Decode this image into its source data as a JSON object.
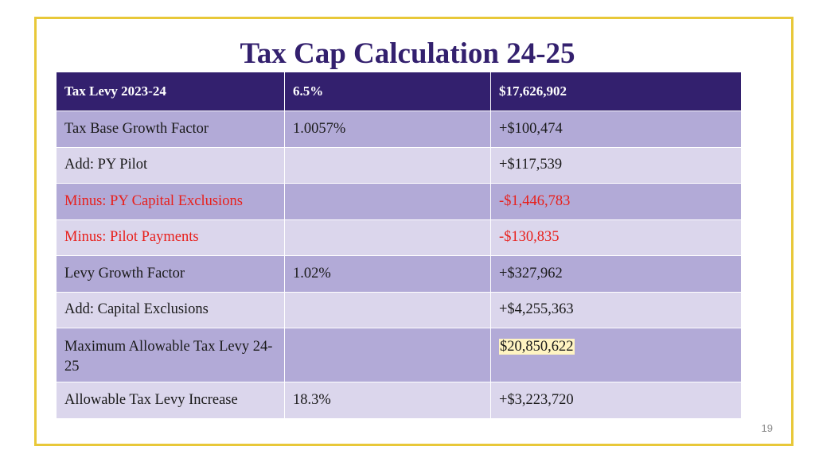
{
  "title": "Tax Cap Calculation 24-25",
  "header": {
    "label": "Tax Levy 2023-24",
    "rate": "6.5%",
    "amount": "$17,626,902"
  },
  "rows": [
    {
      "label": "Tax Base Growth Factor",
      "rate": "1.0057%",
      "amount": "+$100,474"
    },
    {
      "label": "Add: PY Pilot",
      "rate": "",
      "amount": "+$117,539"
    },
    {
      "label": "Minus: PY Capital Exclusions",
      "rate": "",
      "amount": "-$1,446,783"
    },
    {
      "label": "Minus: Pilot Payments",
      "rate": "",
      "amount": "-$130,835"
    },
    {
      "label": "Levy Growth Factor",
      "rate": "1.02%",
      "amount": "+$327,962"
    },
    {
      "label": "Add: Capital Exclusions",
      "rate": "",
      "amount": "+$4,255,363"
    },
    {
      "label": "Maximum Allowable Tax Levy 24-25",
      "rate": "",
      "amount": "$20,850,622"
    },
    {
      "label": "Allowable Tax Levy Increase",
      "rate": "18.3%",
      "amount": "+$3,223,720"
    }
  ],
  "page_number": "19",
  "colors": {
    "header_bg": "#33206e",
    "row_dark": "#b2aad7",
    "row_light": "#dbd6ec",
    "negative_text": "#e8201c",
    "frame": "#e8c839",
    "highlight": "#fff4c2"
  }
}
